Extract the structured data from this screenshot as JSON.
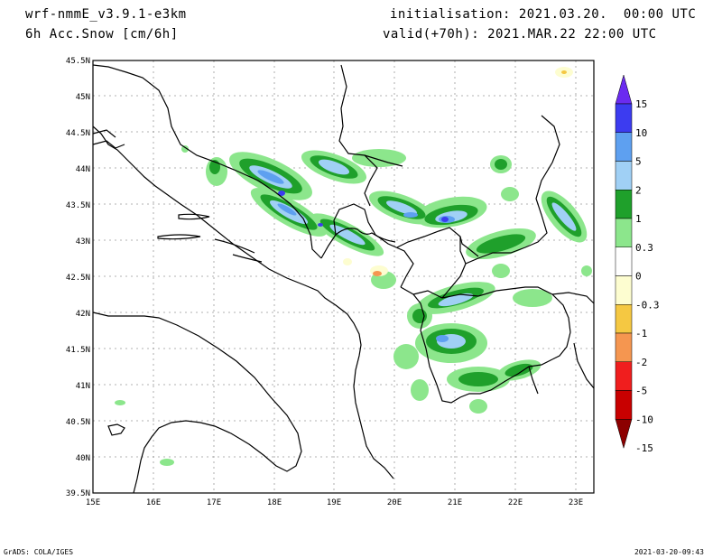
{
  "header": {
    "model": "wrf-nmmE_v3.9.1-e3km",
    "field": "6h Acc.Snow [cm/6h]",
    "init": "initialisation: 2021.03.20.  00:00 UTC",
    "valid": "valid(+70h): 2021.MAR.22 22:00 UTC"
  },
  "axes": {
    "lat_labels": [
      "45.5N",
      "45N",
      "44.5N",
      "44N",
      "43.5N",
      "43N",
      "42.5N",
      "42N",
      "41.5N",
      "41N",
      "40.5N",
      "40N",
      "39.5N"
    ],
    "lon_labels": [
      "15E",
      "16E",
      "17E",
      "18E",
      "19E",
      "20E",
      "21E",
      "22E",
      "23E"
    ]
  },
  "colorbar": {
    "labels": [
      "15",
      "10",
      "5",
      "2",
      "1",
      "0.3",
      "0",
      "-0.3",
      "-1",
      "-2",
      "-5",
      "-10",
      "-15"
    ],
    "colors": [
      "#6b2bf0",
      "#3c3cf0",
      "#5ea0f0",
      "#a0d0f5",
      "#1fa02b",
      "#8ce68c",
      "#ffffff",
      "#fdfdd0",
      "#f5c842",
      "#f59650",
      "#f01e1e",
      "#c80000",
      "#8c0000"
    ]
  },
  "footer": {
    "left": "GrADS: COLA/IGES",
    "right": "2021-03-20-09:43"
  }
}
